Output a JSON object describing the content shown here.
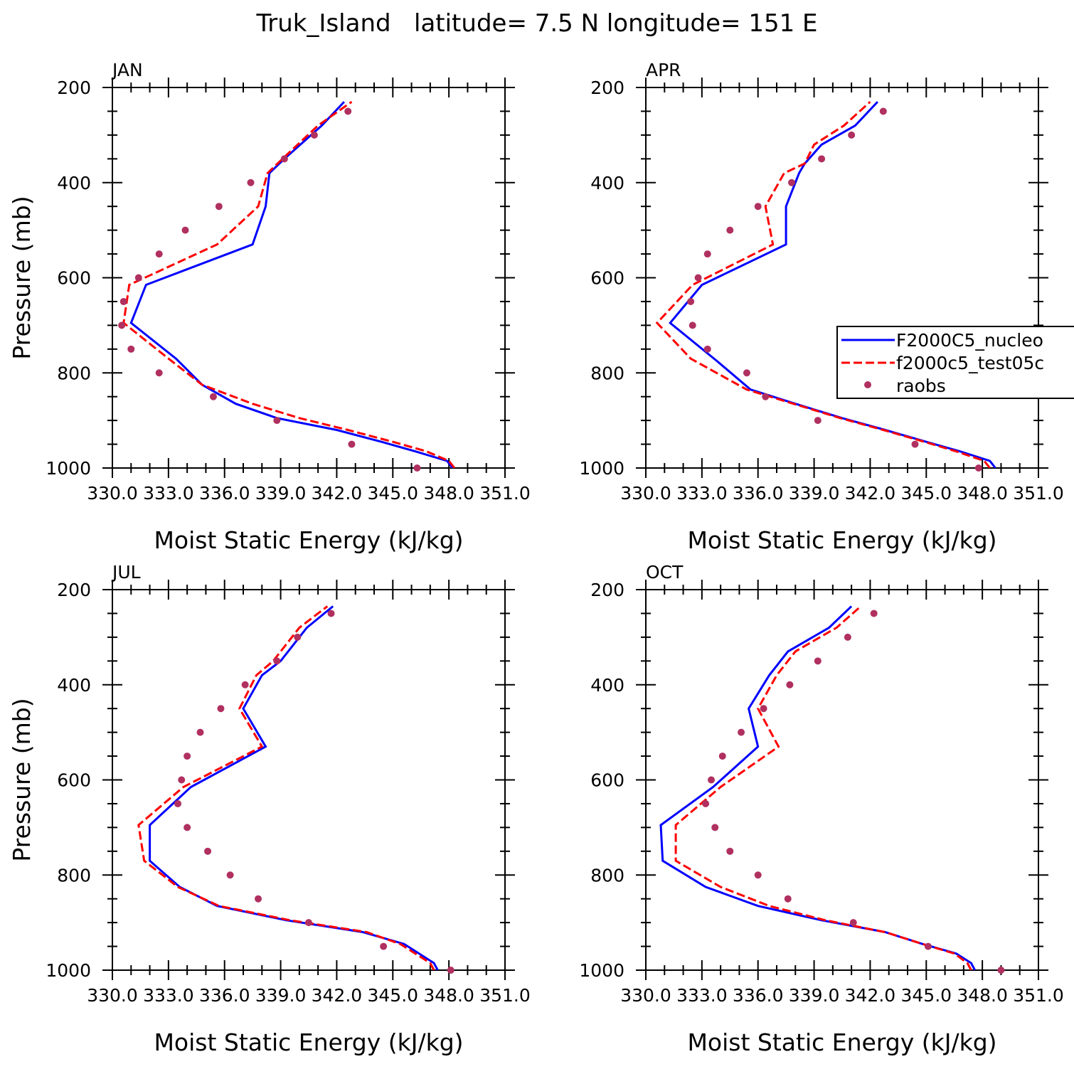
{
  "page_title": "Truk_Island   latitude= 7.5 N longitude= 151 E",
  "colors": {
    "series1": "#0000ff",
    "series2": "#ff0000",
    "obs": "#b03060",
    "axis": "#000000"
  },
  "axes": {
    "xlabel": "Moist Static Energy (kJ/kg)",
    "ylabel": "Pressure (mb)",
    "xlim": [
      330,
      351
    ],
    "ylim": [
      200,
      1000
    ],
    "y_inverted": true,
    "xtick_labels": [
      "330.0",
      "333.0",
      "336.0",
      "339.0",
      "342.0",
      "345.0",
      "348.0",
      "351.0"
    ],
    "ytick_labels": [
      "200",
      "400",
      "600",
      "800",
      "1000"
    ]
  },
  "legend": {
    "entries": [
      "F2000C5_nucleo",
      "f2000c5_test05c",
      "raobs"
    ]
  },
  "chart_data": [
    {
      "type": "line",
      "title": "JAN",
      "series": [
        {
          "name": "F2000C5_nucleo",
          "style": "solid",
          "x": [
            348.2,
            347.9,
            346.2,
            344.4,
            342.0,
            338.8,
            336.6,
            334.8,
            333.4,
            331.0,
            331.8,
            337.5,
            338.2,
            338.4,
            339.2,
            341.2,
            342.4
          ],
          "y": [
            1000,
            985,
            965,
            945,
            920,
            895,
            865,
            825,
            770,
            695,
            615,
            530,
            450,
            380,
            350,
            280,
            230
          ]
        },
        {
          "name": "f2000c5_test05c",
          "style": "dashed",
          "x": [
            348.3,
            348.0,
            346.8,
            345.0,
            342.6,
            340.0,
            337.5,
            334.8,
            333.0,
            330.6,
            330.9,
            335.6,
            337.8,
            338.3,
            339.1,
            341.0,
            342.8
          ],
          "y": [
            1000,
            985,
            965,
            945,
            920,
            895,
            865,
            825,
            770,
            695,
            615,
            530,
            450,
            380,
            350,
            280,
            230
          ]
        }
      ],
      "observations": {
        "name": "raobs",
        "x": [
          346.3,
          342.8,
          338.8,
          335.4,
          332.5,
          331.0,
          330.5,
          330.6,
          331.4,
          332.5,
          333.9,
          335.7,
          337.4,
          339.2,
          340.8,
          342.6
        ],
        "y": [
          1000,
          950,
          900,
          850,
          800,
          750,
          700,
          650,
          600,
          550,
          500,
          450,
          400,
          350,
          300,
          250
        ]
      }
    },
    {
      "type": "line",
      "title": "APR",
      "series": [
        {
          "name": "F2000C5_nucleo",
          "style": "solid",
          "x": [
            348.7,
            348.4,
            346.8,
            345.0,
            342.8,
            340.5,
            338.0,
            335.6,
            333.8,
            331.3,
            333.0,
            337.5,
            337.5,
            338.2,
            338.5,
            339.4,
            341.2,
            342.4
          ],
          "y": [
            1000,
            985,
            965,
            945,
            920,
            895,
            865,
            835,
            775,
            695,
            615,
            530,
            450,
            380,
            360,
            320,
            280,
            230
          ]
        },
        {
          "name": "f2000c5_test05c",
          "style": "dashed",
          "x": [
            348.4,
            348.1,
            346.6,
            344.9,
            342.7,
            340.4,
            337.9,
            335.4,
            332.4,
            330.6,
            332.5,
            336.8,
            336.4,
            337.4,
            338.5,
            339.0,
            340.6,
            342.0
          ],
          "y": [
            1000,
            985,
            965,
            945,
            920,
            895,
            865,
            835,
            770,
            695,
            615,
            530,
            450,
            380,
            360,
            320,
            280,
            230
          ]
        }
      ],
      "observations": {
        "name": "raobs",
        "x": [
          347.8,
          344.4,
          339.2,
          336.4,
          335.4,
          333.3,
          332.5,
          332.4,
          332.8,
          333.3,
          334.5,
          336.0,
          337.8,
          339.4,
          341.0,
          342.7
        ],
        "y": [
          1000,
          950,
          900,
          850,
          800,
          750,
          700,
          650,
          600,
          550,
          500,
          450,
          400,
          350,
          300,
          250
        ]
      }
    },
    {
      "type": "line",
      "title": "JUL",
      "series": [
        {
          "name": "F2000C5_nucleo",
          "style": "solid",
          "x": [
            347.4,
            347.2,
            346.4,
            345.6,
            343.4,
            339.3,
            335.6,
            333.6,
            332.0,
            332.0,
            334.2,
            338.2,
            337.0,
            338.0,
            339.0,
            340.4,
            341.8
          ],
          "y": [
            1000,
            985,
            965,
            945,
            920,
            895,
            865,
            825,
            770,
            695,
            615,
            530,
            450,
            380,
            350,
            280,
            235
          ]
        },
        {
          "name": "f2000c5_test05c",
          "style": "dashed",
          "x": [
            347.2,
            347.0,
            346.2,
            345.4,
            343.6,
            339.5,
            335.7,
            333.5,
            331.7,
            331.4,
            333.8,
            338.0,
            336.8,
            337.7,
            338.6,
            340.0,
            341.5
          ],
          "y": [
            1000,
            985,
            965,
            945,
            920,
            895,
            865,
            825,
            770,
            695,
            615,
            530,
            450,
            380,
            350,
            280,
            235
          ]
        }
      ],
      "observations": {
        "name": "raobs",
        "x": [
          348.1,
          344.5,
          340.5,
          337.8,
          336.3,
          335.1,
          334.0,
          333.5,
          333.7,
          334.0,
          334.7,
          335.8,
          337.1,
          338.8,
          339.9,
          341.7
        ],
        "y": [
          1000,
          950,
          900,
          850,
          800,
          750,
          700,
          650,
          600,
          550,
          500,
          450,
          400,
          350,
          300,
          250
        ]
      }
    },
    {
      "type": "line",
      "title": "OCT",
      "series": [
        {
          "name": "F2000C5_nucleo",
          "style": "solid",
          "x": [
            347.6,
            347.4,
            346.6,
            344.8,
            342.8,
            339.4,
            336.0,
            333.2,
            330.9,
            330.8,
            333.6,
            336.0,
            335.5,
            336.6,
            337.6,
            339.8,
            341.0
          ],
          "y": [
            1000,
            985,
            965,
            945,
            920,
            895,
            865,
            825,
            770,
            695,
            615,
            530,
            450,
            380,
            330,
            280,
            235
          ]
        },
        {
          "name": "f2000c5_test05c",
          "style": "dashed",
          "x": [
            347.4,
            347.2,
            346.5,
            344.8,
            342.8,
            339.6,
            336.6,
            334.0,
            331.6,
            331.6,
            334.0,
            337.1,
            336.0,
            337.0,
            338.0,
            340.2,
            341.5
          ],
          "y": [
            1000,
            985,
            965,
            945,
            920,
            895,
            865,
            825,
            770,
            695,
            615,
            530,
            450,
            380,
            330,
            280,
            235
          ]
        }
      ],
      "observations": {
        "name": "raobs",
        "x": [
          349.0,
          345.1,
          341.1,
          337.6,
          336.0,
          334.5,
          333.7,
          333.2,
          333.5,
          334.1,
          335.1,
          336.3,
          337.7,
          339.2,
          340.8,
          342.2
        ],
        "y": [
          1000,
          950,
          900,
          850,
          800,
          750,
          700,
          650,
          600,
          550,
          500,
          450,
          400,
          350,
          300,
          250
        ]
      }
    }
  ]
}
